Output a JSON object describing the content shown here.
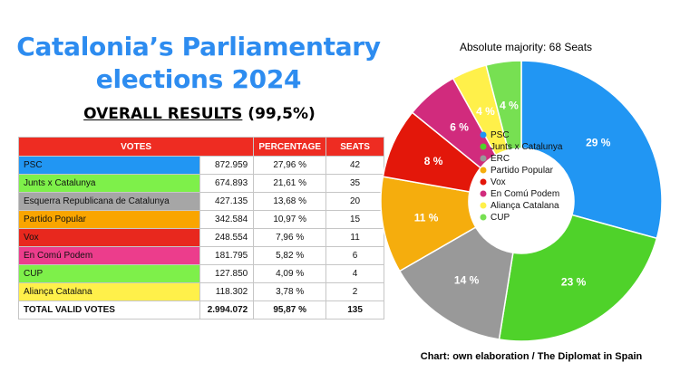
{
  "header": {
    "title_line1": "Catalonia’s Parliamentary",
    "title_line2": "elections 2024",
    "subtitle_main": "OVERALL RESULTS",
    "subtitle_pct": "(99,5%)"
  },
  "table": {
    "columns": [
      "VOTES",
      "PERCENTAGE",
      "SEATS"
    ],
    "rows": [
      {
        "party": "PSC",
        "votes": "872.959",
        "percentage": "27,96 %",
        "seats": "42",
        "color": "#2196f3"
      },
      {
        "party": "Junts x Catalunya",
        "votes": "674.893",
        "percentage": "21,61 %",
        "seats": "35",
        "color": "#7ef04a"
      },
      {
        "party": "Esquerra Republicana de Catalunya",
        "votes": "427.135",
        "percentage": "13,68 %",
        "seats": "20",
        "color": "#a6a6a6"
      },
      {
        "party": "Partido Popular",
        "votes": "342.584",
        "percentage": "10,97 %",
        "seats": "15",
        "color": "#f9a500"
      },
      {
        "party": "Vox",
        "votes": "248.554",
        "percentage": "7,96 %",
        "seats": "11",
        "color": "#e8281e"
      },
      {
        "party": "En Comú Podem",
        "votes": "181.795",
        "percentage": "5,82 %",
        "seats": "6",
        "color": "#ec3d8c"
      },
      {
        "party": "CUP",
        "votes": "127.850",
        "percentage": "4,09 %",
        "seats": "4",
        "color": "#7ef04a"
      },
      {
        "party": "Aliança Catalana",
        "votes": "118.302",
        "percentage": "3,78 %",
        "seats": "2",
        "color": "#fff04a"
      }
    ],
    "total": {
      "party": "TOTAL VALID VOTES",
      "votes": "2.994.072",
      "percentage": "95,87 %",
      "seats": "135"
    }
  },
  "chart_data": {
    "type": "pie",
    "donut": true,
    "title": "Absolute majority: 68 Seats",
    "labels": [
      "PSC",
      "Junts x Catalunya",
      "ERC",
      "Partido Popular",
      "Vox",
      "En Comú Podem",
      "Aliança Catalana",
      "CUP"
    ],
    "values": [
      29,
      23,
      14,
      11,
      8,
      6,
      4,
      4
    ],
    "slice_labels": [
      "29 %",
      "23 %",
      "14 %",
      "11 %",
      "8 %",
      "6 %",
      "4 %",
      "4 %"
    ],
    "colors": [
      "#2196f3",
      "#4fd22a",
      "#999999",
      "#f5ad0d",
      "#e3170a",
      "#d12b7d",
      "#fff04a",
      "#77e052"
    ],
    "label_colors": [
      "#ffffff",
      "#ffffff",
      "#ffffff",
      "#ffffff",
      "#ffffff",
      "#ffffff",
      "#ffffff",
      "#ffffff"
    ],
    "legend_position": "center"
  },
  "credit": "Chart: own elaboration / The Diplomat in Spain"
}
